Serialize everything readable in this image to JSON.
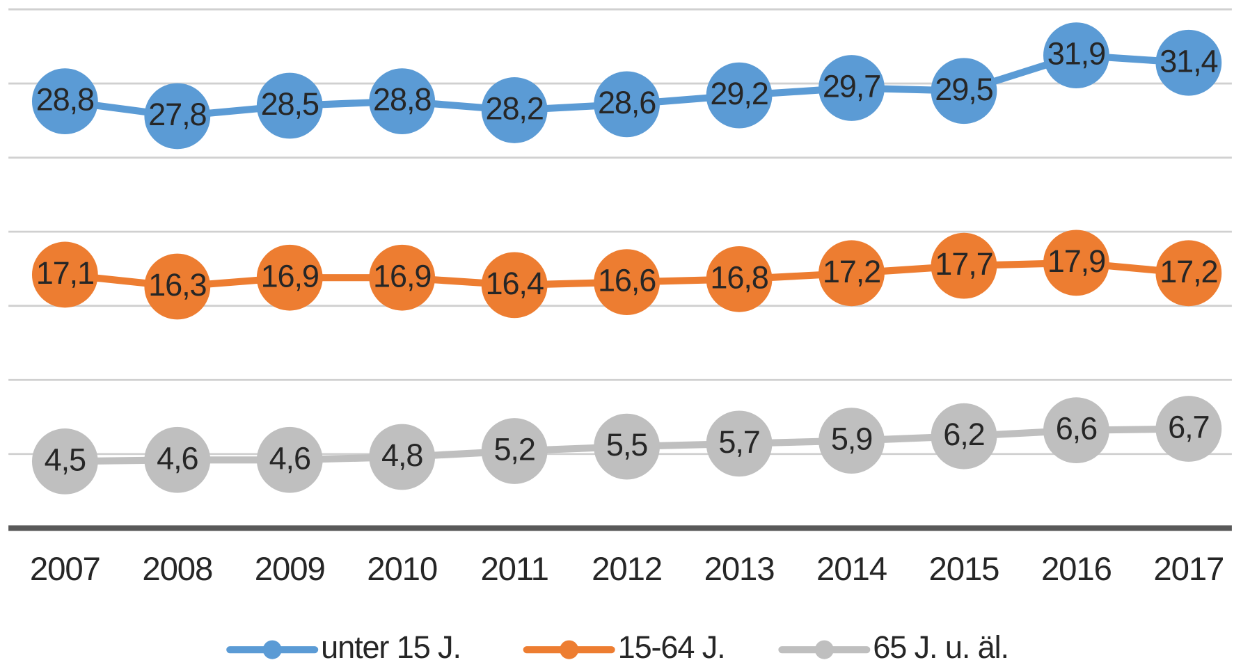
{
  "chart_data": {
    "type": "line",
    "categories": [
      "2007",
      "2008",
      "2009",
      "2010",
      "2011",
      "2012",
      "2013",
      "2014",
      "2015",
      "2016",
      "2017"
    ],
    "series": [
      {
        "name": "unter 15 J.",
        "color": "#5b9bd5",
        "values": [
          28.8,
          27.8,
          28.5,
          28.8,
          28.2,
          28.6,
          29.2,
          29.7,
          29.5,
          31.9,
          31.4
        ],
        "value_labels": [
          "28,8",
          "27,8",
          "28,5",
          "28,8",
          "28,2",
          "28,6",
          "29,2",
          "29,7",
          "29,5",
          "31,9",
          "31,4"
        ]
      },
      {
        "name": "15-64 J.",
        "color": "#ed7d31",
        "values": [
          17.1,
          16.3,
          16.9,
          16.9,
          16.4,
          16.6,
          16.8,
          17.2,
          17.7,
          17.9,
          17.2
        ],
        "value_labels": [
          "17,1",
          "16,3",
          "16,9",
          "16,9",
          "16,4",
          "16,6",
          "16,8",
          "17,2",
          "17,7",
          "17,9",
          "17,2"
        ]
      },
      {
        "name": "65 J. u. äl.",
        "color": "#bfbfbf",
        "values": [
          4.5,
          4.6,
          4.6,
          4.8,
          5.2,
          5.5,
          5.7,
          5.9,
          6.2,
          6.6,
          6.7
        ],
        "value_labels": [
          "4,5",
          "4,6",
          "4,6",
          "4,8",
          "5,2",
          "5,5",
          "5,7",
          "5,9",
          "6,2",
          "6,6",
          "6,7"
        ]
      }
    ],
    "ylim": [
      0,
      35
    ],
    "yticks": [
      0,
      5,
      10,
      15,
      20,
      25,
      30,
      35
    ],
    "grid": true,
    "legend": "bottom"
  }
}
